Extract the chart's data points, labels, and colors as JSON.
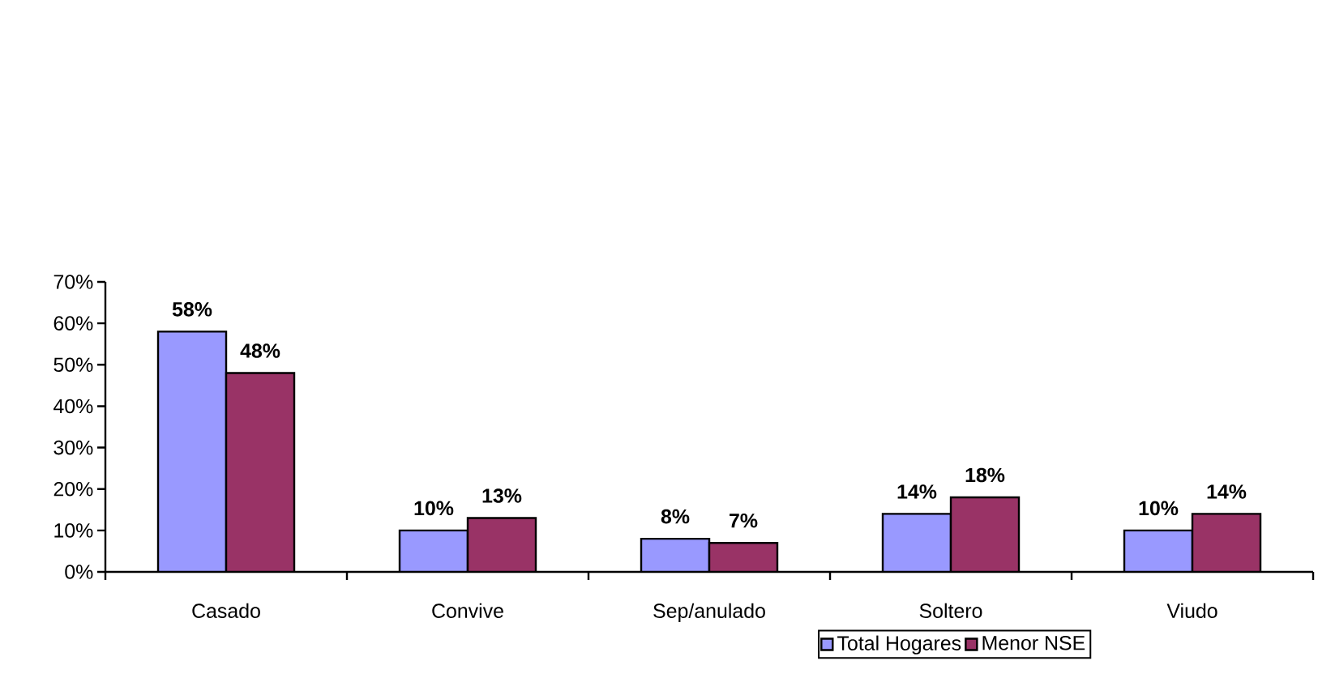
{
  "chart_data": {
    "type": "bar",
    "categories": [
      "Casado",
      "Convive",
      "Sep/anulado",
      "Soltero",
      "Viudo"
    ],
    "series": [
      {
        "name": "Total Hogares",
        "color": "#9999ff",
        "values": [
          58,
          10,
          8,
          14,
          10
        ],
        "value_labels": [
          "58%",
          "10%",
          "8%",
          "14%",
          "10%"
        ]
      },
      {
        "name": "Menor NSE",
        "color": "#993366",
        "values": [
          48,
          13,
          7,
          18,
          14
        ],
        "value_labels": [
          "48%",
          "13%",
          "7%",
          "18%",
          "14%"
        ]
      }
    ],
    "ylim": [
      0,
      70
    ],
    "yticks": [
      {
        "value": 0,
        "label": "0%"
      },
      {
        "value": 10,
        "label": "10%"
      },
      {
        "value": 20,
        "label": "20%"
      },
      {
        "value": 30,
        "label": "30%"
      },
      {
        "value": 40,
        "label": "40%"
      },
      {
        "value": 50,
        "label": "50%"
      },
      {
        "value": 60,
        "label": "60%"
      },
      {
        "value": 70,
        "label": "70%"
      }
    ],
    "grid": false,
    "legend": "bottom right"
  }
}
